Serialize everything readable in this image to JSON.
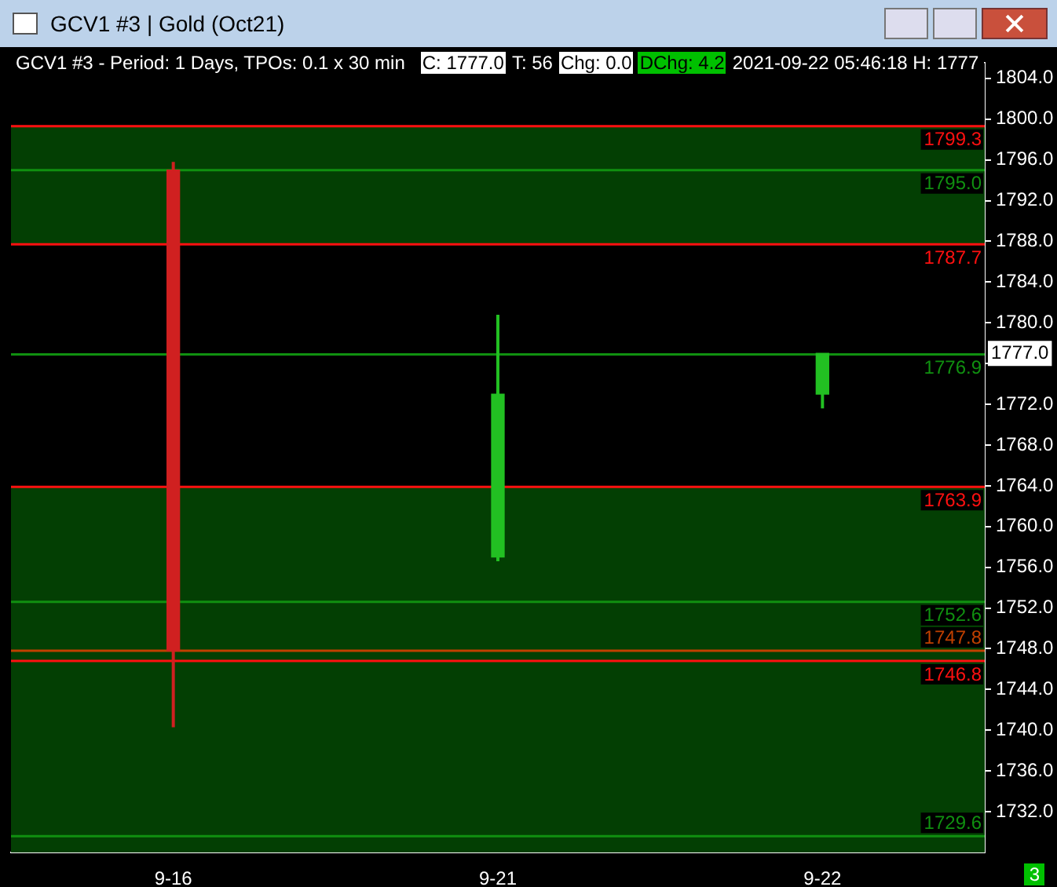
{
  "chart_data": {
    "type": "candlestick",
    "title": "GCV1 #3 | Gold (Oct21)",
    "subtitle": "GCV1 #3 - Period: 1 Days, TPOs: 0.1 x 30 min",
    "categories": [
      "9-16",
      "9-21",
      "9-22"
    ],
    "ohlc": [
      [
        1795.0,
        1795.8,
        1740.3,
        1747.8
      ],
      [
        1757.0,
        1780.8,
        1756.6,
        1773.0
      ],
      [
        1773.0,
        1777.0,
        1771.6,
        1777.0
      ]
    ],
    "colors": [
      "#d02020",
      "#22c022",
      "#22c022"
    ],
    "ylim": [
      1728,
      1805.5
    ],
    "yticks": [
      {
        "value": 1732,
        "label": "1732.0"
      },
      {
        "value": 1736,
        "label": "1736.0"
      },
      {
        "value": 1740,
        "label": "1740.0"
      },
      {
        "value": 1744,
        "label": "1744.0"
      },
      {
        "value": 1748,
        "label": "1748.0"
      },
      {
        "value": 1752,
        "label": "1752.0"
      },
      {
        "value": 1756,
        "label": "1756.0"
      },
      {
        "value": 1760,
        "label": "1760.0"
      },
      {
        "value": 1764,
        "label": "1764.0"
      },
      {
        "value": 1768,
        "label": "1768.0"
      },
      {
        "value": 1772,
        "label": "1772.0"
      },
      {
        "value": 1776,
        "label": null
      },
      {
        "value": 1780,
        "label": "1780.0"
      },
      {
        "value": 1784,
        "label": "1784.0"
      },
      {
        "value": 1788,
        "label": "1788.0"
      },
      {
        "value": 1792,
        "label": "1792.0"
      },
      {
        "value": 1796,
        "label": "1796.0"
      },
      {
        "value": 1800,
        "label": "1800.0"
      },
      {
        "value": 1804,
        "label": "1804.0"
      }
    ],
    "bands": [
      {
        "axis": "y",
        "from": 1787.7,
        "to": 1799.3,
        "color": "#033f03"
      },
      {
        "axis": "y",
        "from": 1746.8,
        "to": 1763.9,
        "color": "#033f03"
      },
      {
        "axis": "y",
        "from": 1728,
        "to": 1747.8,
        "color": "#033f03"
      }
    ],
    "ref_lines": [
      {
        "axis": "y",
        "value": 1799.3,
        "label": "1799.3",
        "color": "#ff1010"
      },
      {
        "axis": "y",
        "value": 1795.0,
        "label": "1795.0",
        "color": "#109010"
      },
      {
        "axis": "y",
        "value": 1787.7,
        "label": "1787.7",
        "color": "#ff1010"
      },
      {
        "axis": "y",
        "value": 1776.9,
        "label": "1776.9",
        "color": "#109010"
      },
      {
        "axis": "y",
        "value": 1763.9,
        "label": "1763.9",
        "color": "#ff1010"
      },
      {
        "axis": "y",
        "value": 1752.6,
        "label": "1752.6",
        "color": "#109010"
      },
      {
        "axis": "y",
        "value": 1747.8,
        "label": "1747.8",
        "color": "#c04000"
      },
      {
        "axis": "y",
        "value": 1746.8,
        "label": "1746.8",
        "color": "#ff1010"
      },
      {
        "axis": "y",
        "value": 1729.6,
        "label": "1729.6",
        "color": "#109010"
      }
    ],
    "annotations": [
      "C: 1777.0",
      "T: 56",
      "Chg: 0.0",
      "DChg: 4.2",
      "2021-09-22 05:46:18 H: 1777",
      {
        "text": "1777.0",
        "y": 1777.0
      },
      "3"
    ]
  }
}
